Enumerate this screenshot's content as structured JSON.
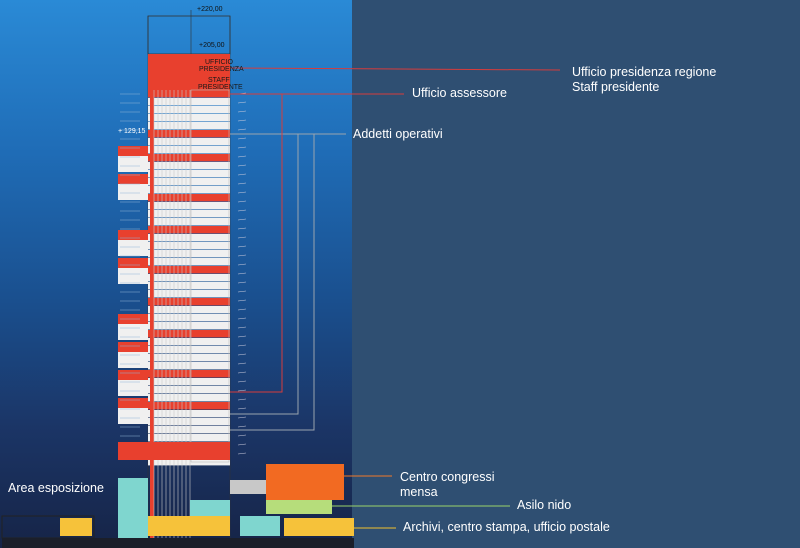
{
  "elevations": {
    "top": "+220,00",
    "crown": "+205,00",
    "side": "+ 129,15"
  },
  "floor_labels": {
    "ufficio_presidenza": [
      "UFFICIO",
      "PRESIDENZA"
    ],
    "staff_presidente": [
      "STAFF",
      "PRESIDENTE"
    ]
  },
  "legend": {
    "ufficio_presidenza": "Ufficio presidenza regione",
    "staff_presidente": "Staff  presidente",
    "ufficio_assessore": "Ufficio assessore",
    "addetti_operativi": "Addetti operativi",
    "area_esposizione": "Area esposizione",
    "centro_congressi": "Centro congressi",
    "mensa": "mensa",
    "asilo_nido": "Asilo nido",
    "archivi": "Archivi, centro stampa, ufficio postale"
  },
  "colors": {
    "office_red": "#e8402e",
    "operative_white": "#f0f0f0",
    "congress_orange": "#f26a22",
    "kindergarten_green": "#b6dd7b",
    "archive_yellow": "#f6c23a",
    "exhibition_teal": "#7fd6cf",
    "leader_red": "#d63c3c",
    "leader_grey": "#9aa4ae",
    "leader_orange": "#f07a2a",
    "leader_green": "#9bd36b",
    "leader_yellow": "#f2c02f"
  }
}
